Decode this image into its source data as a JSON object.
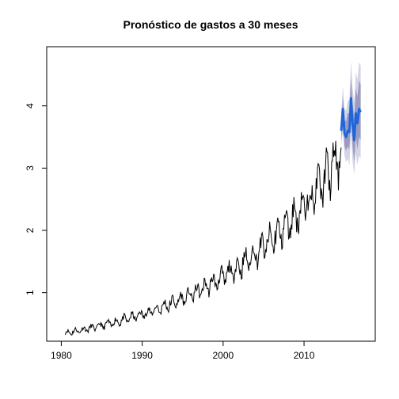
{
  "chart_data": {
    "type": "line",
    "title": "Pronóstico de gastos a 30 meses",
    "xlabel": "",
    "ylabel": "",
    "xlim": [
      1978.2,
      2018.8
    ],
    "ylim": [
      0.22,
      4.95
    ],
    "x_ticks": [
      1980,
      1990,
      2000,
      2010
    ],
    "y_ticks": [
      1,
      2,
      3,
      4
    ],
    "grid": false,
    "legend": "none",
    "history": {
      "start": 1980.5,
      "end": 2014.6,
      "base_start": 0.35,
      "base_end": 3.22,
      "seasonal_amplitude": 0.1,
      "color": "#000000"
    },
    "forecast": {
      "start": 2014.6,
      "end": 2017.1,
      "x": [
        2014.6,
        2014.8,
        2015.0,
        2015.2,
        2015.4,
        2015.6,
        2015.8,
        2016.0,
        2016.2,
        2016.4,
        2016.6,
        2016.8,
        2017.0
      ],
      "mean": [
        3.6,
        3.95,
        3.55,
        3.5,
        3.6,
        3.58,
        4.12,
        3.7,
        3.45,
        3.88,
        3.72,
        3.95,
        3.9
      ],
      "lo80": [
        3.45,
        3.75,
        3.35,
        3.28,
        3.35,
        3.3,
        3.8,
        3.35,
        3.1,
        3.5,
        3.3,
        3.5,
        3.45
      ],
      "hi80": [
        3.75,
        4.15,
        3.78,
        3.75,
        3.88,
        3.88,
        4.45,
        4.05,
        3.82,
        4.28,
        4.15,
        4.4,
        4.35
      ],
      "lo95": [
        3.35,
        3.6,
        3.2,
        3.1,
        3.15,
        3.05,
        3.55,
        3.1,
        2.9,
        3.25,
        3.05,
        3.2,
        3.15
      ],
      "hi95": [
        3.88,
        4.32,
        3.95,
        3.92,
        4.08,
        4.1,
        4.72,
        4.3,
        4.05,
        4.55,
        4.42,
        4.7,
        4.65
      ],
      "color_mean": "#2166d8",
      "color_80": "#9b9bc2",
      "color_95": "#d4d4e6"
    }
  }
}
